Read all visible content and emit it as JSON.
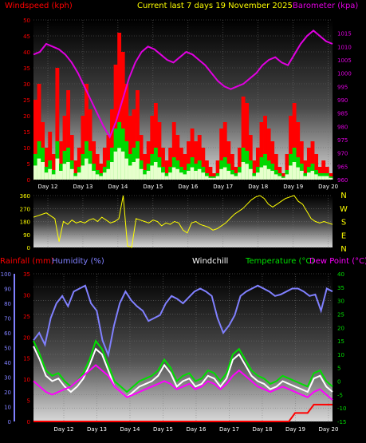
{
  "chart_data": [
    {
      "type": "line",
      "title": "Current last 7 days 19 November 2025",
      "ylabel_left": "Windspeed (kph)",
      "ylabel_right": "Barometer (kpa)",
      "ylim_left": [
        0,
        50
      ],
      "ylim_right": [
        960,
        1020
      ],
      "yticks_left": [
        "0",
        "5",
        "10",
        "15",
        "20",
        "25",
        "30",
        "35",
        "40",
        "45",
        "50"
      ],
      "yticks_right": [
        "960",
        "965",
        "970",
        "975",
        "980",
        "985",
        "990",
        "995",
        "1000",
        "1005",
        "1010",
        "1015"
      ],
      "x_labels": [
        "Day 12",
        "Day 13",
        "Day 14",
        "Day 15",
        "Day 16",
        "Day 17",
        "Day 18",
        "Day 19",
        "Day 20"
      ],
      "colors": {
        "gust": "#ff0000",
        "wind": "#00d800",
        "wind_light": "#e6ffcc",
        "barometer": "#e000e0"
      },
      "barometer": [
        1007,
        1008,
        1011,
        1010,
        1009,
        1007,
        1004,
        1000,
        995,
        990,
        985,
        980,
        976,
        982,
        990,
        998,
        1004,
        1008,
        1010,
        1009,
        1007,
        1005,
        1004,
        1006,
        1008,
        1007,
        1005,
        1003,
        1000,
        997,
        995,
        994,
        995,
        996,
        998,
        1000,
        1003,
        1005,
        1006,
        1004,
        1003,
        1007,
        1011,
        1014,
        1016,
        1014,
        1012,
        1011
      ],
      "gust": [
        25,
        30,
        18,
        10,
        15,
        8,
        35,
        12,
        20,
        28,
        14,
        6,
        10,
        20,
        30,
        22,
        12,
        8,
        5,
        10,
        14,
        22,
        36,
        46,
        40,
        30,
        20,
        22,
        28,
        14,
        8,
        12,
        20,
        24,
        18,
        10,
        6,
        10,
        18,
        14,
        10,
        8,
        12,
        16,
        12,
        14,
        10,
        6,
        4,
        2,
        6,
        16,
        18,
        12,
        8,
        4,
        10,
        26,
        24,
        14,
        6,
        10,
        18,
        20,
        16,
        12,
        8,
        4,
        2,
        8,
        20,
        24,
        18,
        12,
        6,
        10,
        12,
        8,
        4,
        6,
        4,
        2
      ],
      "wind": [
        8,
        12,
        10,
        4,
        6,
        3,
        12,
        5,
        9,
        10,
        6,
        2,
        4,
        8,
        12,
        9,
        5,
        3,
        2,
        4,
        6,
        10,
        16,
        18,
        16,
        12,
        8,
        10,
        12,
        6,
        3,
        5,
        8,
        10,
        7,
        4,
        2,
        4,
        7,
        6,
        4,
        3,
        5,
        7,
        5,
        6,
        4,
        2,
        1,
        1,
        2,
        6,
        7,
        5,
        3,
        2,
        4,
        10,
        9,
        6,
        2,
        4,
        7,
        8,
        6,
        5,
        3,
        2,
        1,
        3,
        8,
        10,
        7,
        5,
        2,
        4,
        5,
        3,
        2,
        2,
        2,
        1
      ]
    },
    {
      "type": "scatter",
      "ylabel_left": [
        "360",
        "270",
        "180",
        "90",
        "0"
      ],
      "ylabel_right": [
        "N",
        "W",
        "S",
        "E",
        "N"
      ],
      "ylim": [
        0,
        360
      ],
      "x_labels": [
        "Day 12",
        "Day 13",
        "Day 14",
        "Day 15",
        "Day 16",
        "Day 17",
        "Day 18",
        "Day 19",
        "Day 20"
      ],
      "colors": {
        "direction": "#ffff00"
      },
      "direction": [
        210,
        220,
        230,
        240,
        220,
        200,
        40,
        180,
        160,
        190,
        170,
        180,
        170,
        190,
        200,
        180,
        210,
        190,
        170,
        180,
        200,
        360,
        10,
        0,
        200,
        190,
        180,
        170,
        190,
        180,
        150,
        170,
        160,
        180,
        170,
        120,
        100,
        170,
        180,
        160,
        150,
        140,
        120,
        130,
        150,
        170,
        200,
        230,
        250,
        270,
        300,
        330,
        350,
        360,
        340,
        300,
        280,
        300,
        320,
        340,
        350,
        360,
        320,
        300,
        250,
        200,
        180,
        170,
        180,
        170,
        160
      ],
      "direction_note": ""
    },
    {
      "type": "line",
      "labels": {
        "rainfall": "Rainfall (mm)",
        "humidity": "Humidity (%)",
        "windchill": "Windchill",
        "temperature": "Temperature (°C)",
        "dewpoint": "Dew Point (°C)"
      },
      "yticks_humidity": [
        "0",
        "10",
        "20",
        "30",
        "40",
        "50",
        "60",
        "70",
        "80",
        "90",
        "100"
      ],
      "yticks_rain": [
        "0",
        "5",
        "10",
        "15",
        "20",
        "25",
        "30",
        "35"
      ],
      "yticks_temp": [
        "-15",
        "-10",
        "-5",
        "0",
        "5",
        "10",
        "15",
        "20",
        "25",
        "30",
        "35",
        "40"
      ],
      "ylim_humidity": [
        0,
        100
      ],
      "ylim_rain": [
        0,
        35
      ],
      "ylim_temp": [
        -15,
        40
      ],
      "x_labels": [
        "Day 12",
        "Day 13",
        "Day 14",
        "Day 15",
        "Day 16",
        "Day 17",
        "Day 18",
        "Day 19",
        "Day 20"
      ],
      "colors": {
        "rainfall": "#ff0000",
        "humidity": "#8080ff",
        "windchill": "#ffffff",
        "temperature": "#00e000",
        "dewpoint": "#ff00ff"
      },
      "humidity": [
        55,
        60,
        52,
        70,
        80,
        85,
        78,
        88,
        90,
        92,
        80,
        75,
        55,
        45,
        65,
        80,
        88,
        82,
        78,
        75,
        68,
        70,
        72,
        80,
        85,
        83,
        80,
        84,
        88,
        90,
        88,
        85,
        70,
        60,
        65,
        72,
        85,
        88,
        90,
        92,
        90,
        88,
        85,
        86,
        88,
        90,
        90,
        88,
        85,
        86,
        75,
        90,
        88
      ],
      "temperature": [
        15,
        10,
        4,
        2,
        3,
        0,
        -2,
        0,
        3,
        8,
        15,
        12,
        6,
        0,
        -2,
        -4,
        -2,
        0,
        1,
        2,
        4,
        8,
        5,
        0,
        2,
        3,
        0,
        1,
        4,
        3,
        0,
        3,
        10,
        12,
        8,
        4,
        2,
        1,
        -1,
        0,
        2,
        1,
        0,
        -1,
        -2,
        3,
        4,
        0,
        -2
      ],
      "windchill": [
        13,
        8,
        2,
        0,
        1,
        -2,
        -4,
        -2,
        1,
        6,
        12,
        10,
        4,
        -2,
        -4,
        -6,
        -4,
        -2,
        -1,
        0,
        2,
        6,
        3,
        -2,
        0,
        1,
        -2,
        -1,
        2,
        1,
        -2,
        1,
        8,
        10,
        6,
        2,
        0,
        -1,
        -3,
        -2,
        0,
        -1,
        -2,
        -3,
        -4,
        1,
        2,
        -2,
        -4
      ],
      "dewpoint": [
        0,
        -2,
        -4,
        -5,
        -4,
        -3,
        -2,
        0,
        2,
        4,
        6,
        4,
        2,
        -2,
        -4,
        -6,
        -5,
        -4,
        -3,
        -2,
        -1,
        0,
        -1,
        -3,
        -2,
        -1,
        -3,
        -2,
        0,
        -1,
        -3,
        -1,
        2,
        4,
        2,
        0,
        -2,
        -3,
        -4,
        -3,
        -2,
        -3,
        -4,
        -5,
        -6,
        -4,
        -3,
        -5,
        -7
      ],
      "rainfall": [
        0,
        0,
        0,
        0,
        0,
        0,
        0,
        0,
        0,
        0,
        0,
        0,
        0,
        0,
        0,
        0,
        0,
        0,
        0,
        0,
        0,
        0,
        0,
        0,
        0,
        0,
        0,
        0,
        0,
        0,
        0,
        0,
        0,
        0,
        0,
        0,
        0,
        0,
        0,
        0,
        0,
        0,
        2,
        2,
        2,
        4,
        4,
        4,
        4
      ]
    }
  ]
}
